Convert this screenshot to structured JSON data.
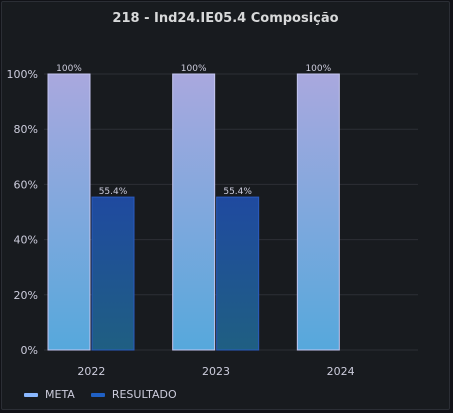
{
  "panel": {
    "title": "218 - Ind24.IE05.4 Composição"
  },
  "chart_data": {
    "type": "bar",
    "title": "218 - Ind24.IE05.4 Composição",
    "categories": [
      "2022",
      "2023",
      "2024"
    ],
    "series": [
      {
        "name": "META",
        "values": [
          100,
          100,
          100
        ],
        "labels": [
          "100%",
          "100%",
          "100%"
        ],
        "color_top": "#a9a8de",
        "color_bottom": "#56a8dc",
        "legend_color": "#8ab8ff"
      },
      {
        "name": "RESULTADO",
        "values": [
          55.4,
          55.4,
          null
        ],
        "labels": [
          "55.4%",
          "55.4%",
          ""
        ],
        "color_top": "#1f4aa0",
        "color_bottom": "#1f5f82",
        "legend_color": "#1f60c4"
      }
    ],
    "ylim": [
      0,
      100
    ],
    "yticks": [
      "0%",
      "20%",
      "40%",
      "60%",
      "80%",
      "100%"
    ],
    "grid": true,
    "legend": "bottom-left"
  }
}
